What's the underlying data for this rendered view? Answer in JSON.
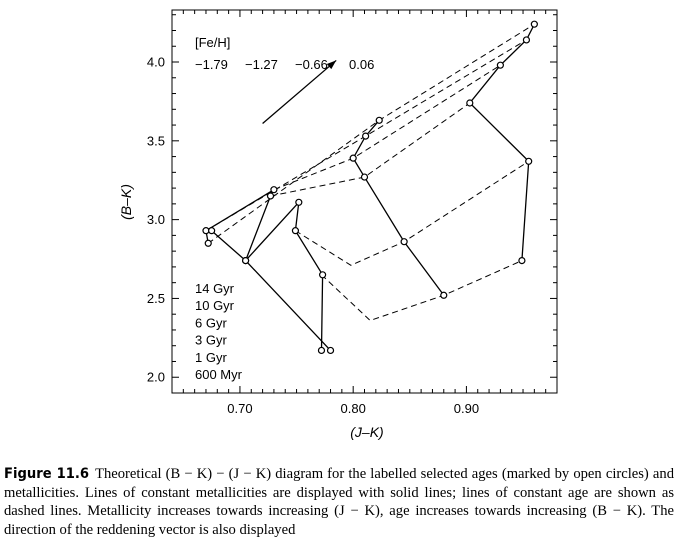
{
  "chart_data": {
    "type": "scatter",
    "xlabel": "(J–K)",
    "ylabel": "(B–K)",
    "xlim": [
      0.64,
      0.98
    ],
    "ylim": [
      1.9,
      4.33
    ],
    "x_ticks": [
      0.7,
      0.8,
      0.9
    ],
    "x_tick_labels": [
      "0.70",
      "0.80",
      "0.90"
    ],
    "y_ticks": [
      2.0,
      2.5,
      3.0,
      3.5,
      4.0
    ],
    "y_tick_labels": [
      "2.0",
      "2.5",
      "3.0",
      "3.5",
      "4.0"
    ],
    "grid": false,
    "metallicity_header": "[Fe/H]",
    "ages": [
      "14 Gyr",
      "10 Gyr",
      "6 Gyr",
      "3 Gyr",
      "1 Gyr",
      "600 Myr"
    ],
    "series": [
      {
        "name": "−1.79",
        "style": "solid",
        "x": [
          0.672,
          0.67,
          0.73,
          0.727,
          0.705,
          0.78
        ],
        "y": [
          2.85,
          2.93,
          3.19,
          3.15,
          2.74,
          2.17
        ]
      },
      {
        "name": "−1.27",
        "style": "solid",
        "x": [
          0.675,
          0.705,
          0.752,
          0.749,
          0.773,
          0.772
        ],
        "y": [
          2.93,
          2.74,
          3.11,
          2.93,
          2.65,
          2.17
        ]
      },
      {
        "name": "−0.66",
        "style": "solid",
        "x": [
          0.823,
          0.811,
          0.8,
          0.81,
          0.845,
          0.88
        ],
        "y": [
          3.63,
          3.53,
          3.39,
          3.27,
          2.86,
          2.52
        ]
      },
      {
        "name": "0.06",
        "style": "solid",
        "x": [
          0.96,
          0.953,
          0.93,
          0.903,
          0.955,
          0.949
        ],
        "y": [
          4.24,
          4.14,
          3.98,
          3.74,
          3.37,
          2.74
        ]
      }
    ],
    "age_lines": [
      {
        "name": "14 Gyr",
        "style": "dashed",
        "x": [
          0.672,
          0.823,
          0.96
        ],
        "y": [
          2.85,
          3.63,
          4.24
        ]
      },
      {
        "name": "10 Gyr",
        "style": "dashed",
        "x": [
          0.67,
          0.811,
          0.953
        ],
        "y": [
          2.93,
          3.53,
          4.14
        ]
      },
      {
        "name": "6 Gyr",
        "style": "dashed",
        "x": [
          0.73,
          0.8,
          0.93
        ],
        "y": [
          3.19,
          3.39,
          3.98
        ]
      },
      {
        "name": "3 Gyr",
        "style": "dashed",
        "x": [
          0.727,
          0.81,
          0.903
        ],
        "y": [
          3.15,
          3.27,
          3.74
        ]
      },
      {
        "name": "1 Gyr",
        "style": "dashed",
        "x": [
          0.749,
          0.798,
          0.845,
          0.955
        ],
        "y": [
          2.93,
          2.71,
          2.86,
          3.37
        ]
      },
      {
        "name": "600 Myr",
        "style": "dashed",
        "x": [
          0.772,
          0.815,
          0.88,
          0.949
        ],
        "y": [
          2.65,
          2.36,
          2.52,
          2.74
        ]
      }
    ],
    "reddening_vector": {
      "x": [
        0.72,
        0.785
      ],
      "y": [
        3.61,
        4.01
      ]
    }
  },
  "caption": {
    "label": "Figure 11.6",
    "text": "Theoretical (B − K) − (J − K) diagram for the labelled selected ages (marked by open circles) and metallicities. Lines of constant metallicities are displayed with solid lines; lines of constant age are shown as dashed lines. Metallicity increases towards increasing (J − K), age increases towards increasing (B − K). The direction of the reddening vector is also displayed"
  }
}
